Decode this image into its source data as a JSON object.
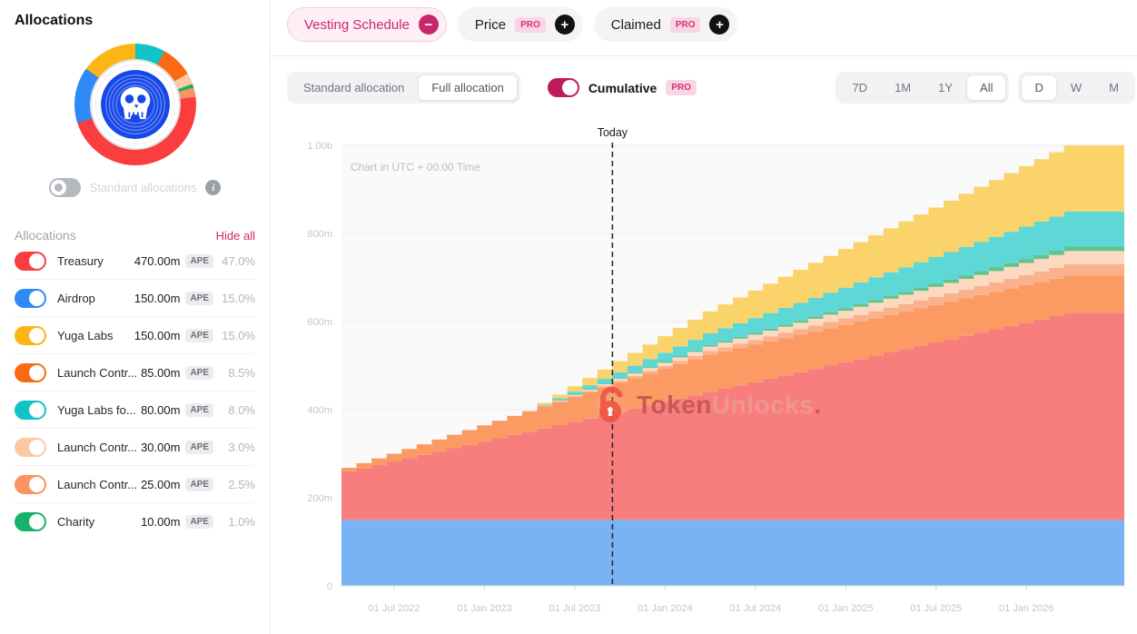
{
  "sidebar": {
    "title": "Allocations",
    "standard_toggle_label": "Standard allocations",
    "list_header": "Allocations",
    "hide_all": "Hide all",
    "allocations": [
      {
        "name": "Treasury",
        "value": "470.00m",
        "unit": "APE",
        "percent": "47.0%",
        "color": "#fa3d3d",
        "enabled": true
      },
      {
        "name": "Airdrop",
        "value": "150.00m",
        "unit": "APE",
        "percent": "15.0%",
        "color": "#2f8af5",
        "enabled": true
      },
      {
        "name": "Yuga Labs",
        "value": "150.00m",
        "unit": "APE",
        "percent": "15.0%",
        "color": "#fdb515",
        "enabled": true
      },
      {
        "name": "Launch Contr...",
        "value": "85.00m",
        "unit": "APE",
        "percent": "8.5%",
        "color": "#fb6a13",
        "enabled": true
      },
      {
        "name": "Yuga Labs fo...",
        "value": "80.00m",
        "unit": "APE",
        "percent": "8.0%",
        "color": "#0fc3c7",
        "enabled": true
      },
      {
        "name": "Launch Contr...",
        "value": "30.00m",
        "unit": "APE",
        "percent": "3.0%",
        "color": "#fbc9a4",
        "enabled": true
      },
      {
        "name": "Launch Contr...",
        "value": "25.00m",
        "unit": "APE",
        "percent": "2.5%",
        "color": "#fa9264",
        "enabled": true
      },
      {
        "name": "Charity",
        "value": "10.00m",
        "unit": "APE",
        "percent": "1.0%",
        "color": "#17b26a",
        "enabled": true
      }
    ],
    "donut_segments": [
      {
        "color": "#0fc3c7",
        "pct": 8
      },
      {
        "color": "#fb6a13",
        "pct": 8.5
      },
      {
        "color": "#fbc9a4",
        "pct": 3
      },
      {
        "color": "#17b26a",
        "pct": 1
      },
      {
        "color": "#fa9264",
        "pct": 2.5
      },
      {
        "color": "#fa3d3d",
        "pct": 47
      },
      {
        "color": "#2f8af5",
        "pct": 15
      },
      {
        "color": "#fdb515",
        "pct": 15
      }
    ]
  },
  "icons": {
    "minus": "−",
    "plus": "+",
    "info": "i"
  },
  "tabs": [
    {
      "label": "Vesting Schedule",
      "active": true,
      "action": "minus"
    },
    {
      "label": "Price",
      "active": false,
      "pro": "PRO",
      "action": "plus"
    },
    {
      "label": "Claimed",
      "active": false,
      "pro": "PRO",
      "action": "plus"
    }
  ],
  "controls": {
    "allocation_mode": {
      "options": [
        "Standard allocation",
        "Full allocation"
      ],
      "active": 1
    },
    "cumulative_label": "Cumulative",
    "pro_badge": "PRO",
    "range": {
      "options": [
        "7D",
        "1M",
        "1Y",
        "All"
      ],
      "active": 3
    },
    "granularity": {
      "options": [
        "D",
        "W",
        "M"
      ],
      "active": 0
    }
  },
  "chart": {
    "today_label": "Today",
    "timezone_note": "Chart in UTC + 00:00 Time",
    "watermark": {
      "part1": "Token",
      "part2": "Unlocks",
      "dot": "."
    }
  },
  "chart_data": {
    "type": "area",
    "title": "Cumulative vesting schedule (stacked, monthly steps)",
    "xlabel": "",
    "ylabel": "",
    "y_max": 1000,
    "y_ticks": [
      {
        "v": 0,
        "label": "0"
      },
      {
        "v": 200,
        "label": "200m"
      },
      {
        "v": 400,
        "label": "400m"
      },
      {
        "v": 600,
        "label": "600m"
      },
      {
        "v": 800,
        "label": "800m"
      },
      {
        "v": 1000,
        "label": "1.00b"
      }
    ],
    "x_ticks": [
      {
        "t": 3.5,
        "label": "01 Jul 2022"
      },
      {
        "t": 9.5,
        "label": "01 Jan 2023"
      },
      {
        "t": 15.5,
        "label": "01 Jul 2023"
      },
      {
        "t": 21.5,
        "label": "01 Jan 2024"
      },
      {
        "t": 27.5,
        "label": "01 Jul 2024"
      },
      {
        "t": 33.5,
        "label": "01 Jan 2025"
      },
      {
        "t": 39.5,
        "label": "01 Jul 2025"
      },
      {
        "t": 45.5,
        "label": "01 Jan 2026"
      }
    ],
    "today_t": 18,
    "months": [
      "2022-03",
      "2022-04",
      "2022-05",
      "2022-06",
      "2022-07",
      "2022-08",
      "2022-09",
      "2022-10",
      "2022-11",
      "2022-12",
      "2023-01",
      "2023-02",
      "2023-03",
      "2023-04",
      "2023-05",
      "2023-06",
      "2023-07",
      "2023-08",
      "2023-09",
      "2023-10",
      "2023-11",
      "2023-12",
      "2024-01",
      "2024-02",
      "2024-03",
      "2024-04",
      "2024-05",
      "2024-06",
      "2024-07",
      "2024-08",
      "2024-09",
      "2024-10",
      "2024-11",
      "2024-12",
      "2025-01",
      "2025-02",
      "2025-03",
      "2025-04",
      "2025-05",
      "2025-06",
      "2025-07",
      "2025-08",
      "2025-09",
      "2025-10",
      "2025-11",
      "2025-12",
      "2026-01",
      "2026-02",
      "2026-03",
      "2026-04",
      "2026-05",
      "2026-06"
    ],
    "series": [
      {
        "name": "Airdrop",
        "color": "#79b3f3",
        "values": [
          150,
          150,
          150,
          150,
          150,
          150,
          150,
          150,
          150,
          150,
          150,
          150,
          150,
          150,
          150,
          150,
          150,
          150,
          150,
          150,
          150,
          150,
          150,
          150,
          150,
          150,
          150,
          150,
          150,
          150,
          150,
          150,
          150,
          150,
          150,
          150,
          150,
          150,
          150,
          150,
          150,
          150,
          150,
          150,
          150,
          150,
          150,
          150,
          150,
          150,
          150,
          150
        ]
      },
      {
        "name": "Treasury",
        "color": "#f87e7e",
        "values": [
          110,
          117.5,
          125,
          132.5,
          140,
          147.5,
          155,
          162.5,
          170,
          177.5,
          185,
          192.5,
          200,
          207.5,
          215,
          222.5,
          230,
          237.5,
          245,
          252.5,
          260,
          267.5,
          275,
          282.5,
          290,
          297.5,
          305,
          312.5,
          320,
          327.5,
          335,
          342.5,
          350,
          357.5,
          365,
          372.5,
          380,
          387.5,
          395,
          402.5,
          410,
          417.5,
          425,
          432.5,
          440,
          447.5,
          455,
          462.5,
          470,
          470,
          470,
          470
        ]
      },
      {
        "name": "Launch Contr...",
        "color": "#fb9b63",
        "values": [
          8,
          11.2,
          14.4,
          17.6,
          20.8,
          24,
          27.3,
          30.5,
          33.7,
          36.9,
          40.1,
          43.3,
          46.5,
          49.7,
          52.9,
          56.1,
          59.3,
          62.5,
          65.8,
          69,
          72.2,
          75.4,
          78.6,
          81.8,
          85,
          85,
          85,
          85,
          85,
          85,
          85,
          85,
          85,
          85,
          85,
          85,
          85,
          85,
          85,
          85,
          85,
          85,
          85,
          85,
          85,
          85,
          85,
          85,
          85,
          85,
          85,
          85
        ]
      },
      {
        "name": "Launch Contr...",
        "color": "#fbb28c",
        "values": [
          0,
          0,
          0,
          0,
          0,
          0,
          0,
          0,
          0,
          0,
          0,
          0,
          0,
          0.7,
          1.4,
          2.1,
          2.8,
          3.5,
          4.2,
          4.9,
          5.6,
          6.3,
          6.9,
          7.6,
          8.3,
          9,
          9.7,
          10.4,
          11.1,
          11.8,
          12.5,
          13.2,
          13.9,
          14.6,
          15.3,
          16,
          16.7,
          17.4,
          18.1,
          18.8,
          19.4,
          20.1,
          20.8,
          21.5,
          22.2,
          22.9,
          23.6,
          24.3,
          25,
          25,
          25,
          25
        ]
      },
      {
        "name": "Launch Contr...",
        "color": "#fcd9c0",
        "values": [
          0,
          0,
          0,
          0,
          0,
          0,
          0,
          0,
          0,
          0,
          0,
          0,
          0,
          0.8,
          1.7,
          2.5,
          3.3,
          4.2,
          5,
          5.8,
          6.7,
          7.5,
          8.3,
          9.2,
          10,
          10.8,
          11.7,
          12.5,
          13.3,
          14.2,
          15,
          15.8,
          16.7,
          17.5,
          18.3,
          19.2,
          20,
          20.8,
          21.7,
          22.5,
          23.3,
          24.2,
          25,
          25.8,
          26.7,
          27.5,
          28.3,
          29.2,
          30,
          30,
          30,
          30
        ]
      },
      {
        "name": "Charity",
        "color": "#62c388",
        "values": [
          0,
          0,
          0,
          0,
          0,
          0,
          0,
          0,
          0,
          0,
          0,
          0,
          0,
          0.3,
          0.6,
          0.8,
          1.1,
          1.4,
          1.7,
          1.9,
          2.2,
          2.5,
          2.8,
          3.1,
          3.3,
          3.6,
          3.9,
          4.2,
          4.4,
          4.7,
          5,
          5.3,
          5.6,
          5.8,
          6.1,
          6.4,
          6.7,
          6.9,
          7.2,
          7.5,
          7.8,
          8.1,
          8.3,
          8.6,
          8.9,
          9.2,
          9.4,
          9.7,
          10,
          10,
          10,
          10
        ]
      },
      {
        "name": "Yuga Labs fo...",
        "color": "#5ed7d7",
        "values": [
          0,
          0,
          0,
          0,
          0,
          0,
          0,
          0,
          0,
          0,
          0,
          0,
          0,
          2.2,
          4.4,
          6.7,
          8.9,
          11.1,
          13.3,
          15.6,
          17.8,
          20,
          22.2,
          24.4,
          26.7,
          28.9,
          31.1,
          33.3,
          35.6,
          37.8,
          40,
          42.2,
          44.4,
          46.7,
          48.9,
          51.1,
          53.3,
          55.6,
          57.8,
          60,
          62.2,
          64.4,
          66.7,
          68.9,
          71.1,
          73.3,
          75.6,
          77.8,
          80,
          80,
          80,
          80
        ]
      },
      {
        "name": "Yuga Labs",
        "color": "#fbd36b",
        "values": [
          0,
          0,
          0,
          0,
          0,
          0,
          0,
          0,
          0,
          0,
          0,
          0,
          0,
          4.2,
          8.3,
          12.5,
          16.7,
          20.8,
          25,
          29.2,
          33.3,
          37.5,
          41.7,
          45.8,
          50,
          54.2,
          58.3,
          62.5,
          66.7,
          70.8,
          75,
          79.2,
          83.3,
          87.5,
          91.7,
          95.8,
          100,
          104.2,
          108.3,
          112.5,
          116.7,
          120.8,
          125,
          129.2,
          133.3,
          137.5,
          141.7,
          145.8,
          150,
          150,
          150,
          150
        ]
      }
    ]
  }
}
